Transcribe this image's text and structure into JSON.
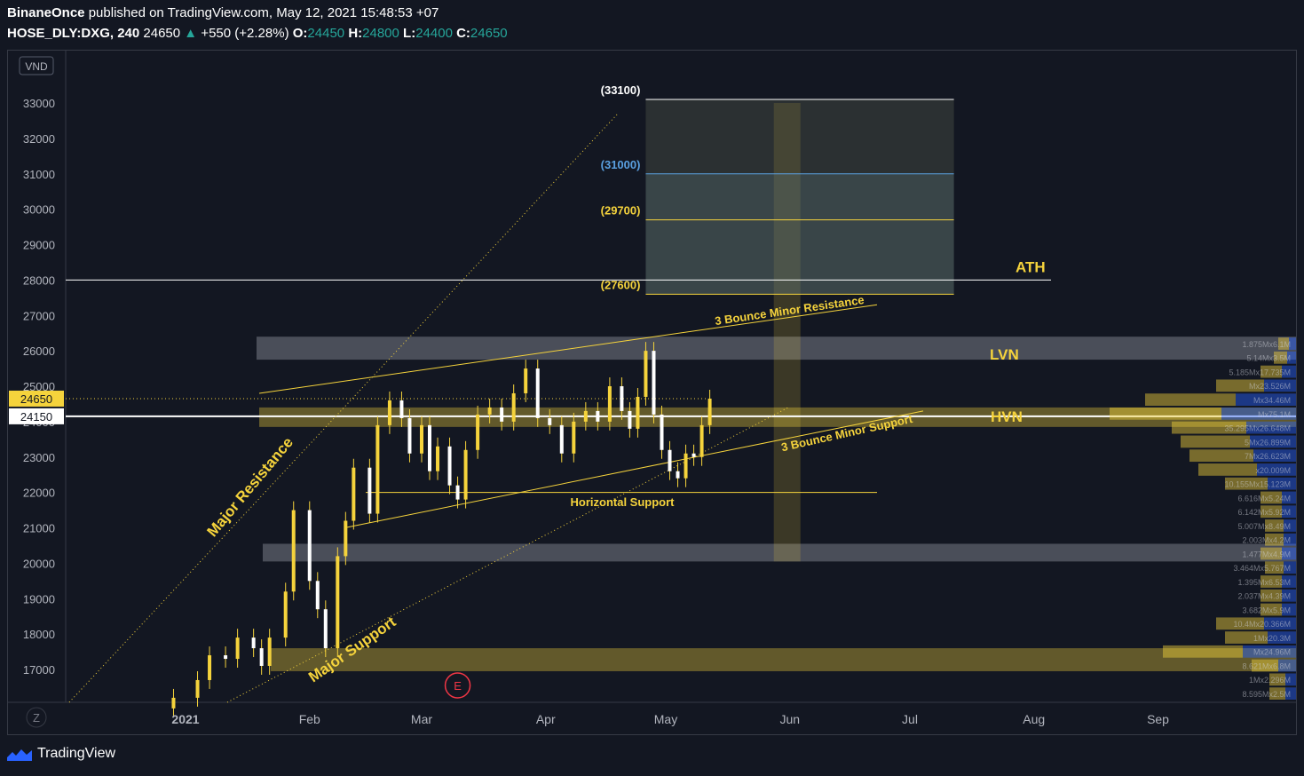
{
  "header": {
    "publisher": "BinaneOnce",
    "published_text": "published on TradingView.com, May 12, 2021 15:48:53 +07",
    "symbol": "HOSE_DLY:DXG, 240",
    "last": "24650",
    "change": "+550 (+2.28%)",
    "o_label": "O:",
    "o": "24450",
    "h_label": "H:",
    "h": "24800",
    "l_label": "L:",
    "l": "24400",
    "c_label": "C:",
    "c": "24650"
  },
  "brand": {
    "name": "TradingView"
  },
  "colors": {
    "background": "#131722",
    "yellow": "#f5d33c",
    "white": "#ffffff",
    "blue": "#5aa0e0",
    "up": "#26a69a"
  },
  "chart_data": {
    "type": "candlestick",
    "currency_label": "VND",
    "y_ticks": [
      17000,
      18000,
      19000,
      20000,
      21000,
      22000,
      23000,
      24000,
      25000,
      26000,
      27000,
      28000,
      29000,
      30000,
      31000,
      32000,
      33000
    ],
    "y_range": [
      16000,
      34000
    ],
    "x_labels": [
      {
        "label": "2021",
        "date": "2021-01-01",
        "bold": true
      },
      {
        "label": "Feb",
        "date": "2021-02-01"
      },
      {
        "label": "Mar",
        "date": "2021-03-01"
      },
      {
        "label": "Apr",
        "date": "2021-04-01"
      },
      {
        "label": "May",
        "date": "2021-05-01"
      },
      {
        "label": "Jun",
        "date": "2021-06-01"
      },
      {
        "label": "Jul",
        "date": "2021-07-01"
      },
      {
        "label": "Aug",
        "date": "2021-08-01"
      },
      {
        "label": "Sep",
        "date": "2021-09-01"
      }
    ],
    "price_tags": [
      {
        "value": 24650,
        "label": "24650",
        "style": "yellow"
      },
      {
        "value": 24150,
        "label": "24150",
        "style": "white"
      }
    ],
    "candles_close": [
      [
        "2020-12-29",
        16200
      ],
      [
        "2021-01-04",
        16700
      ],
      [
        "2021-01-07",
        17400
      ],
      [
        "2021-01-11",
        17300
      ],
      [
        "2021-01-14",
        17900
      ],
      [
        "2021-01-18",
        17600
      ],
      [
        "2021-01-20",
        17100
      ],
      [
        "2021-01-22",
        17900
      ],
      [
        "2021-01-26",
        19200
      ],
      [
        "2021-01-28",
        21500
      ],
      [
        "2021-02-01",
        19500
      ],
      [
        "2021-02-03",
        18700
      ],
      [
        "2021-02-05",
        17600
      ],
      [
        "2021-02-08",
        20200
      ],
      [
        "2021-02-10",
        21200
      ],
      [
        "2021-02-12",
        22700
      ],
      [
        "2021-02-16",
        21400
      ],
      [
        "2021-02-18",
        23900
      ],
      [
        "2021-02-21",
        24600
      ],
      [
        "2021-02-24",
        24100
      ],
      [
        "2021-02-26",
        23100
      ],
      [
        "2021-03-01",
        23900
      ],
      [
        "2021-03-03",
        22600
      ],
      [
        "2021-03-05",
        23300
      ],
      [
        "2021-03-08",
        22200
      ],
      [
        "2021-03-10",
        21800
      ],
      [
        "2021-03-12",
        23200
      ],
      [
        "2021-03-15",
        24200
      ],
      [
        "2021-03-18",
        24400
      ],
      [
        "2021-03-21",
        24000
      ],
      [
        "2021-03-24",
        24800
      ],
      [
        "2021-03-27",
        25500
      ],
      [
        "2021-03-30",
        24100
      ],
      [
        "2021-04-02",
        23900
      ],
      [
        "2021-04-05",
        23100
      ],
      [
        "2021-04-08",
        24000
      ],
      [
        "2021-04-11",
        24300
      ],
      [
        "2021-04-14",
        24000
      ],
      [
        "2021-04-17",
        25000
      ],
      [
        "2021-04-20",
        24300
      ],
      [
        "2021-04-22",
        23800
      ],
      [
        "2021-04-24",
        24700
      ],
      [
        "2021-04-26",
        26000
      ],
      [
        "2021-04-28",
        24200
      ],
      [
        "2021-04-30",
        23200
      ],
      [
        "2021-05-02",
        22600
      ],
      [
        "2021-05-04",
        22400
      ],
      [
        "2021-05-06",
        23100
      ],
      [
        "2021-05-08",
        23000
      ],
      [
        "2021-05-10",
        23900
      ],
      [
        "2021-05-12",
        24650
      ]
    ],
    "horizontal_lines": [
      {
        "value": 28000,
        "label": "ATH"
      },
      {
        "value": 24150,
        "label": "HVN"
      }
    ],
    "zones": [
      {
        "label": "LVN",
        "from": 25750,
        "to": 26400
      },
      {
        "label": "HVN",
        "from": 23850,
        "to": 24400
      },
      {
        "label": "",
        "from": 20050,
        "to": 20550
      },
      {
        "label": "",
        "from": 16950,
        "to": 17600
      }
    ],
    "targets": [
      {
        "label": "(33100)",
        "value": 33100
      },
      {
        "label": "(31000)",
        "value": 31000
      },
      {
        "label": "(29700)",
        "value": 29700
      },
      {
        "label": "(27600)",
        "value": 27600
      }
    ],
    "trendlines": [
      {
        "label": "3 Bounce Minor Resistance"
      },
      {
        "label": "3 Bounce Minor Support"
      },
      {
        "label": "Horizontal Support",
        "value": 22000
      },
      {
        "label": "Major Resistance"
      },
      {
        "label": "Major Support"
      }
    ],
    "volume_profile_labels": [
      "1.875Mx6.1M",
      "5.14Mx3.5M",
      "5.185Mx17.735M",
      "Mx23.526M",
      "Mx34.46M",
      "Mx75.1M",
      "35.295Mx26.648M",
      "5Mx26.899M",
      "7Mx26.623M",
      "x20.009M",
      "10.155Mx15.123M",
      "6.616Mx5.24M",
      "6.142Mx5.92M",
      "5.007Mx8.49M",
      "2.003Mx4.2M",
      "1.477Mx4.9M",
      "3.464Mx5.767M",
      "1.395Mx6.53M",
      "2.037Mx4.39M",
      "3.682Mx5.9M",
      "10.4Mx20.366M",
      "1Mx20.3M",
      "Mx24.96M",
      "8.621Mx6.8M",
      "1Mx2.296M",
      "8.595Mx2.5M"
    ],
    "earnings_marker": "E"
  }
}
